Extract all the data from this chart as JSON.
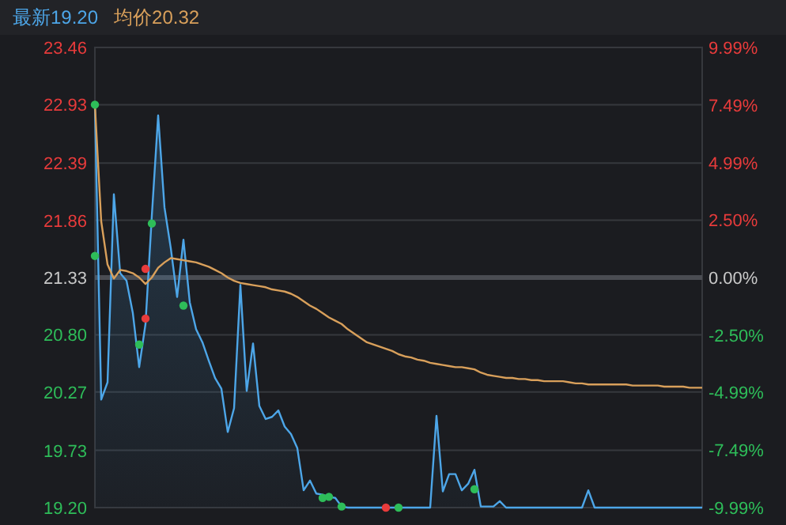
{
  "chart_data": {
    "type": "area",
    "grid": "y",
    "tick_labels": "y",
    "categories": [
      null,
      null,
      null,
      null,
      null,
      null,
      null,
      null,
      null,
      null,
      null,
      null,
      null,
      null,
      null,
      null,
      null,
      null,
      null,
      null,
      null,
      null,
      null,
      null,
      null,
      null,
      null,
      null,
      null,
      null,
      null,
      null,
      null,
      null,
      null,
      null,
      null,
      null,
      null,
      null,
      null,
      null,
      null,
      null,
      null,
      null,
      null,
      null,
      null,
      null,
      null,
      null,
      null,
      null,
      null,
      null,
      null,
      null,
      null,
      null,
      null,
      null,
      null,
      null,
      null,
      null,
      null,
      null,
      null,
      null,
      null,
      null,
      null,
      null,
      null,
      null,
      null,
      null,
      null,
      null,
      null,
      null,
      null,
      null,
      null,
      null,
      null,
      null,
      null,
      null,
      null,
      null,
      null,
      null,
      null,
      null,
      null
    ],
    "ylim": [
      19.2,
      23.46
    ],
    "yticks": [
      {
        "value": 19.2,
        "label": "19.20"
      },
      19.73,
      20.27,
      {
        "value": 20.8,
        "label": "20.80"
      },
      21.33,
      21.86,
      22.39,
      22.93,
      23.46
    ],
    "y2lim": [
      -9.99,
      9.99
    ],
    "y2ticks": [
      {
        "value": -9.99,
        "label": "-9.99%"
      },
      {
        "value": -7.49,
        "label": "-7.49%"
      },
      {
        "value": -4.99,
        "label": "-4.99%"
      },
      {
        "value": -2.5,
        "label": "-2.50%"
      },
      {
        "value": 0,
        "label": "0.00%"
      },
      {
        "value": 2.5,
        "label": "2.50%"
      },
      {
        "value": 4.99,
        "label": "4.99%"
      },
      {
        "value": 7.49,
        "label": "7.49%"
      },
      {
        "value": 9.99,
        "label": "9.99%"
      }
    ],
    "ref_lines": [
      {
        "axis": "y",
        "value": 21.33,
        "color": "#4a4c52"
      }
    ],
    "series": [
      {
        "name": "最新19.20",
        "color": "#4da6e8",
        "values": [
          22.93,
          20.2,
          20.36,
          22.1,
          21.37,
          21.3,
          21.0,
          20.5,
          20.9,
          21.9,
          22.83,
          21.98,
          21.6,
          21.15,
          21.68,
          21.1,
          20.85,
          20.73,
          20.56,
          20.4,
          20.3,
          19.9,
          20.12,
          21.26,
          20.28,
          20.72,
          20.14,
          20.02,
          20.04,
          20.1,
          19.95,
          19.88,
          19.75,
          19.36,
          19.45,
          19.33,
          19.32,
          19.3,
          19.29,
          19.21,
          19.2,
          19.2,
          19.2,
          19.2,
          19.2,
          19.2,
          19.2,
          19.2,
          19.2,
          19.2,
          19.2,
          19.2,
          19.2,
          19.2,
          20.05,
          19.35,
          19.51,
          19.51,
          19.36,
          19.42,
          19.55,
          19.21,
          19.21,
          19.21,
          19.26,
          19.2,
          19.2,
          19.2,
          19.2,
          19.2,
          19.2,
          19.2,
          19.2,
          19.2,
          19.2,
          19.2,
          19.2,
          19.2,
          19.36,
          19.2,
          19.2,
          19.2,
          19.2,
          19.2,
          19.2,
          19.2,
          19.2,
          19.2,
          19.2,
          19.2,
          19.2,
          19.2,
          19.2,
          19.2,
          19.2,
          19.2,
          19.2
        ]
      },
      {
        "name": "均价20.32",
        "type": "line",
        "color": "#d9a05b",
        "values": [
          22.93,
          21.85,
          21.45,
          21.32,
          21.4,
          21.39,
          21.37,
          21.33,
          21.27,
          21.33,
          21.42,
          21.47,
          21.51,
          21.5,
          21.49,
          21.48,
          21.47,
          21.45,
          21.43,
          21.4,
          21.37,
          21.33,
          21.3,
          21.28,
          21.27,
          21.26,
          21.25,
          21.24,
          21.22,
          21.21,
          21.2,
          21.18,
          21.15,
          21.11,
          21.07,
          21.04,
          21.0,
          20.96,
          20.93,
          20.9,
          20.85,
          20.81,
          20.77,
          20.73,
          20.71,
          20.69,
          20.67,
          20.65,
          20.62,
          20.6,
          20.59,
          20.57,
          20.56,
          20.54,
          20.53,
          20.52,
          20.51,
          20.5,
          20.5,
          20.49,
          20.48,
          20.45,
          20.43,
          20.42,
          20.41,
          20.4,
          20.4,
          20.39,
          20.39,
          20.38,
          20.38,
          20.37,
          20.37,
          20.37,
          20.37,
          20.36,
          20.35,
          20.35,
          20.34,
          20.34,
          20.34,
          20.34,
          20.34,
          20.34,
          20.34,
          20.33,
          20.33,
          20.33,
          20.33,
          20.33,
          20.32,
          20.32,
          20.32,
          20.32,
          20.31,
          20.31,
          20.31
        ]
      },
      {
        "type": "scatter",
        "values": [
          22.93,
          null,
          null,
          null,
          null,
          null,
          null,
          20.71,
          20.95,
          21.83,
          null,
          null,
          null,
          null,
          21.07,
          null,
          null,
          null,
          null,
          null,
          null,
          null,
          null,
          null,
          null,
          null,
          null,
          null,
          null,
          null,
          null,
          null,
          null,
          null,
          null,
          null,
          19.29,
          19.3,
          null,
          19.21,
          null,
          null,
          null,
          null,
          null,
          null,
          19.2,
          null,
          19.2,
          null,
          null,
          null,
          null,
          null,
          null,
          null,
          null,
          null,
          null,
          null,
          19.37,
          null,
          null,
          null,
          null,
          null,
          null,
          null,
          null,
          null,
          null,
          null,
          null,
          null,
          null,
          null,
          null,
          null,
          null,
          null,
          null,
          null,
          null,
          null,
          null,
          null,
          null,
          null,
          null,
          null,
          null,
          null,
          null,
          null,
          null,
          null,
          null
        ],
        "colors": [
          "#2ebd59",
          null,
          null,
          null,
          null,
          null,
          null,
          "#2ebd59",
          "#e83b3b",
          "#2ebd59",
          null,
          null,
          null,
          null,
          "#2ebd59",
          null,
          null,
          null,
          null,
          null,
          null,
          null,
          null,
          null,
          null,
          null,
          null,
          null,
          null,
          null,
          null,
          null,
          null,
          null,
          null,
          null,
          "#2ebd59",
          "#2ebd59",
          null,
          "#2ebd59",
          null,
          null,
          null,
          null,
          null,
          null,
          "#e83b3b",
          null,
          "#2ebd59",
          null,
          null,
          null,
          null,
          null,
          null,
          null,
          null,
          null,
          null,
          null,
          "#2ebd59",
          null,
          null,
          null,
          null,
          null,
          null,
          null,
          null,
          null,
          null,
          null,
          null,
          null,
          null,
          null,
          null,
          null,
          null,
          null,
          null,
          null,
          null,
          null,
          null,
          null,
          null,
          null,
          null,
          null,
          null,
          null,
          null,
          null,
          null,
          null,
          null
        ]
      },
      {
        "type": "scatter",
        "values": [
          21.53,
          null,
          null,
          null,
          null,
          null,
          null,
          null,
          21.41,
          null,
          null,
          null,
          null,
          null,
          null,
          null,
          null,
          null,
          null,
          null,
          null,
          null,
          null,
          null,
          null,
          null,
          null,
          null,
          null,
          null,
          null,
          null,
          null,
          null,
          null,
          null,
          null,
          null,
          null,
          null,
          null,
          null,
          null,
          null,
          null,
          null,
          null,
          null,
          null,
          null,
          null,
          null,
          null,
          null,
          null,
          null,
          null,
          null,
          null,
          null,
          null,
          null,
          null,
          null,
          null,
          null,
          null,
          null,
          null,
          null,
          null,
          null,
          null,
          null,
          null,
          null,
          null,
          null,
          null,
          null,
          null,
          null,
          null,
          null,
          null,
          null,
          null,
          null,
          null,
          null,
          null,
          null,
          null,
          null,
          null,
          null,
          null
        ],
        "colors": [
          "#2ebd59",
          null,
          null,
          null,
          null,
          null,
          null,
          null,
          "#e83b3b",
          null,
          null,
          null,
          null,
          null,
          null,
          null,
          null,
          null,
          null,
          null,
          null,
          null,
          null,
          null,
          null,
          null,
          null,
          null,
          null,
          null,
          null,
          null,
          null,
          null,
          null,
          null,
          null,
          null,
          null,
          null,
          null,
          null,
          null,
          null,
          null,
          null,
          null,
          null,
          null,
          null,
          null,
          null,
          null,
          null,
          null,
          null,
          null,
          null,
          null,
          null,
          null,
          null,
          null,
          null,
          null,
          null,
          null,
          null,
          null,
          null,
          null,
          null,
          null,
          null,
          null,
          null,
          null,
          null,
          null,
          null,
          null,
          null,
          null,
          null,
          null,
          null,
          null,
          null,
          null,
          null,
          null,
          null,
          null,
          null,
          null,
          null,
          null
        ]
      }
    ]
  }
}
